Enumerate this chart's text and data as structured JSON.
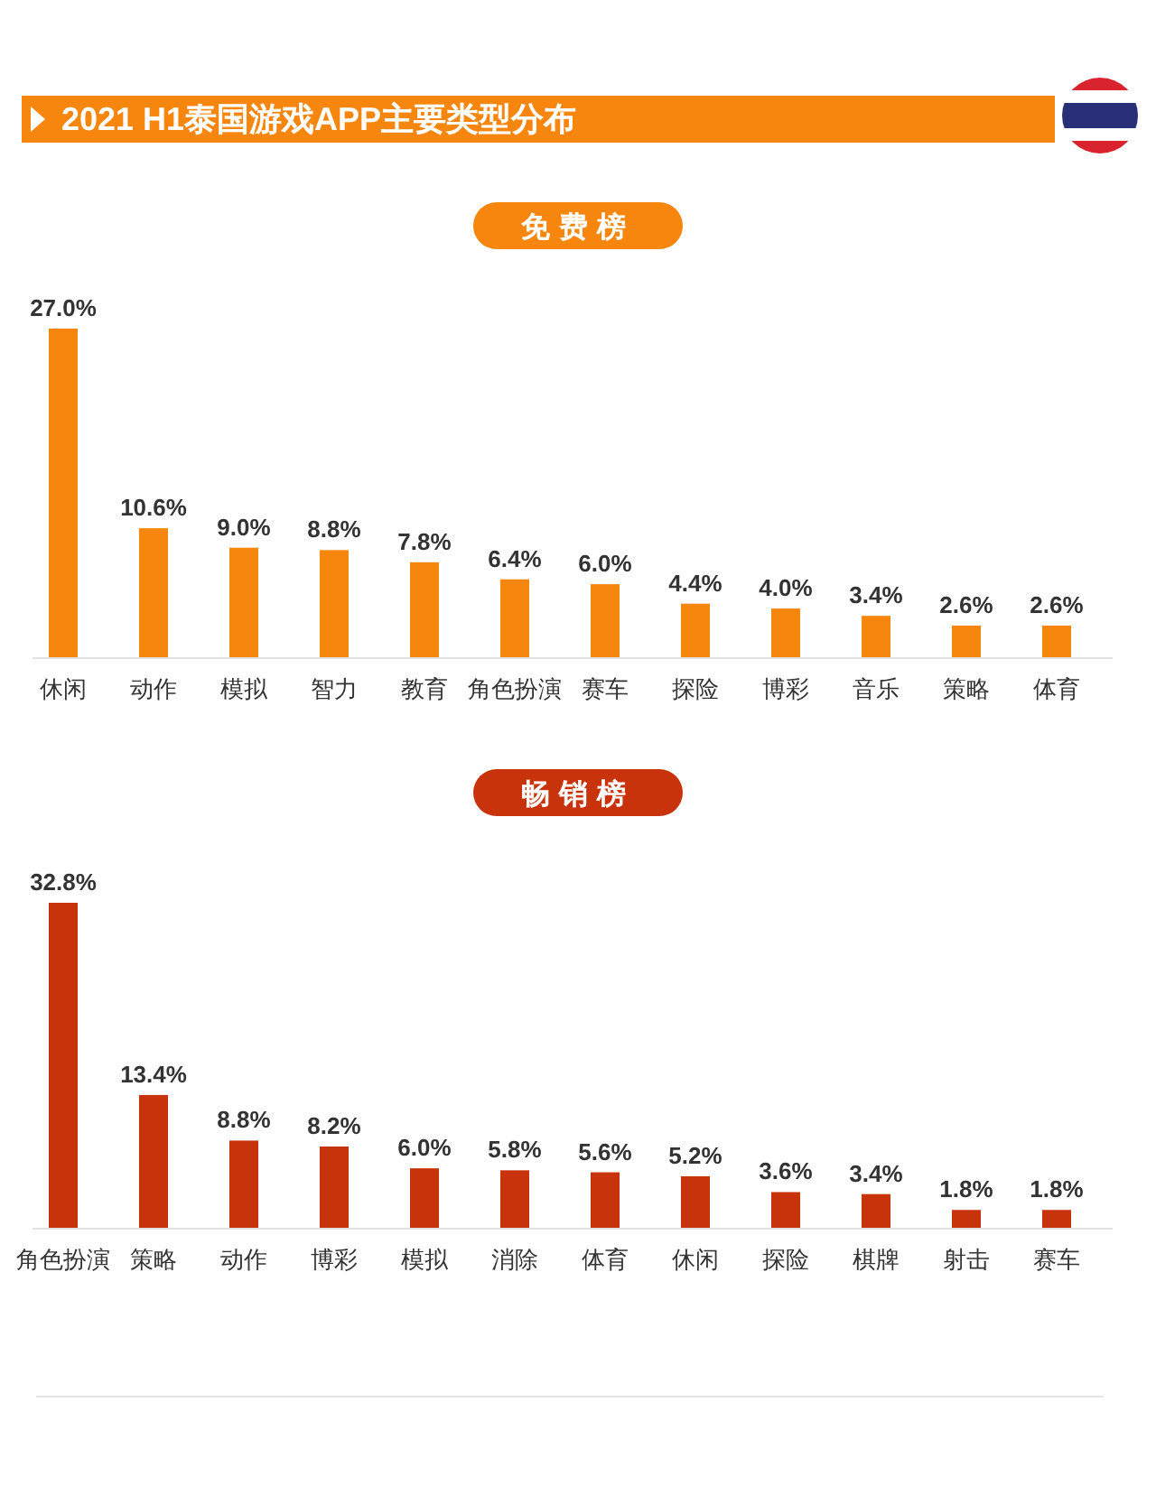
{
  "chart_data": [
    {
      "type": "bar",
      "title": "2021 H1泰国游戏APP主要类型分布",
      "subtitle": "免费榜",
      "categories": [
        "休闲",
        "动作",
        "模拟",
        "智力",
        "教育",
        "角色扮演",
        "赛车",
        "探险",
        "博彩",
        "音乐",
        "策略",
        "体育"
      ],
      "values": [
        27.0,
        10.6,
        9.0,
        8.8,
        7.8,
        6.4,
        6.0,
        4.4,
        4.0,
        3.4,
        2.6,
        2.6
      ],
      "value_labels": [
        "27.0%",
        "10.6%",
        "9.0%",
        "8.8%",
        "7.8%",
        "6.4%",
        "6.0%",
        "4.4%",
        "4.0%",
        "3.4%",
        "2.6%",
        "2.6%"
      ],
      "color": "#f7860f"
    },
    {
      "type": "bar",
      "title": "畅销榜",
      "categories": [
        "角色扮演",
        "策略",
        "动作",
        "博彩",
        "模拟",
        "消除",
        "体育",
        "休闲",
        "探险",
        "棋牌",
        "射击",
        "赛车"
      ],
      "values": [
        32.8,
        13.4,
        8.8,
        8.2,
        6.0,
        5.8,
        5.6,
        5.2,
        3.6,
        3.4,
        1.8,
        1.8
      ],
      "value_labels": [
        "32.8%",
        "13.4%",
        "8.8%",
        "8.2%",
        "6.0%",
        "5.8%",
        "5.6%",
        "5.2%",
        "3.6%",
        "3.4%",
        "1.8%",
        "1.8%"
      ],
      "color": "#c9330c"
    }
  ]
}
